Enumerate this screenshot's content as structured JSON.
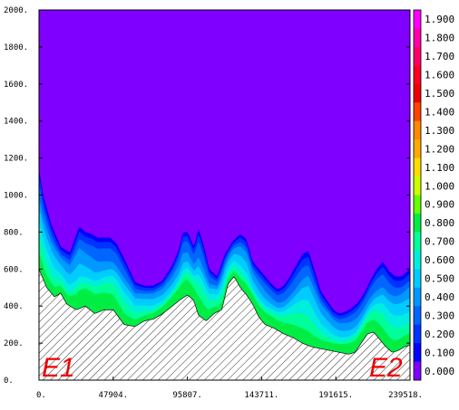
{
  "chart_data": {
    "type": "contour_section",
    "x_ticks": [
      "0.",
      "47904.",
      "95807.",
      "143711.",
      "191615.",
      "239518."
    ],
    "x_tick_values": [
      0,
      47904,
      95807,
      143711,
      191615,
      239518
    ],
    "xlim": [
      0,
      239518
    ],
    "y_ticks": [
      "0.",
      "200.",
      "400.",
      "600.",
      "800.",
      "1000.",
      "1200.",
      "1400.",
      "1600.",
      "1800.",
      "2000."
    ],
    "y_tick_values": [
      0,
      200,
      400,
      600,
      800,
      1000,
      1200,
      1400,
      1600,
      1800,
      2000
    ],
    "ylim": [
      0,
      2000
    ],
    "colorbar": {
      "labels": [
        "1.900",
        "1.800",
        "1.700",
        "1.600",
        "1.500",
        "1.400",
        "1.300",
        "1.200",
        "1.100",
        "1.000",
        "0.900",
        "0.800",
        "0.700",
        "0.600",
        "0.500",
        "0.400",
        "0.300",
        "0.200",
        "0.100",
        "0.000"
      ],
      "colors": [
        "#ff00ff",
        "#ff00aa",
        "#ff0066",
        "#ff0022",
        "#ee0000",
        "#ff4400",
        "#ff8800",
        "#ffaa00",
        "#ffdd00",
        "#ccff00",
        "#66ff00",
        "#00ee44",
        "#00ff99",
        "#00eedd",
        "#00ccff",
        "#0099ff",
        "#0066ff",
        "#0033ff",
        "#0000ff",
        "#7f00ff"
      ]
    },
    "background_color": "#8000ff",
    "terrain_hatched": true,
    "terrain_profile": {
      "x": [
        0,
        5000,
        10000,
        14000,
        18000,
        24000,
        30000,
        36000,
        42000,
        48000,
        55000,
        62000,
        68000,
        74000,
        80000,
        86000,
        92000,
        96000,
        100000,
        103000,
        108000,
        113000,
        118000,
        122000,
        126000,
        130000,
        134000,
        138000,
        142000,
        146000,
        152000,
        158000,
        164000,
        170000,
        176000,
        182000,
        188000,
        194000,
        200000,
        204000,
        208000,
        212000,
        216000,
        220000,
        224000,
        228000,
        232000,
        236000,
        239518
      ],
      "y": [
        600,
        500,
        450,
        470,
        410,
        380,
        400,
        360,
        380,
        380,
        300,
        290,
        320,
        330,
        360,
        400,
        440,
        460,
        430,
        350,
        320,
        360,
        380,
        520,
        560,
        500,
        460,
        410,
        340,
        300,
        280,
        250,
        230,
        200,
        180,
        170,
        160,
        150,
        140,
        150,
        200,
        250,
        260,
        220,
        180,
        150,
        160,
        180,
        190
      ]
    },
    "upper_boundary_0_1": {
      "x": [
        0,
        3000,
        8000,
        14000,
        20000,
        26000,
        30000,
        34000,
        38000,
        42000,
        46000,
        50000,
        56000,
        62000,
        68000,
        74000,
        80000,
        86000,
        90000,
        93000,
        96000,
        100000,
        103000,
        106000,
        110000,
        115000,
        120000,
        125000,
        130000,
        134000,
        138000,
        142000,
        146000,
        150000,
        154000,
        158000,
        162000,
        166000,
        170000,
        174000,
        178000,
        182000,
        186000,
        190000,
        194000,
        198000,
        202000,
        206000,
        210000,
        214000,
        218000,
        222000,
        226000,
        230000,
        234000,
        239518
      ],
      "y": [
        1140,
        990,
        840,
        720,
        690,
        830,
        800,
        790,
        770,
        770,
        770,
        740,
        640,
        530,
        510,
        510,
        540,
        620,
        700,
        800,
        800,
        720,
        820,
        740,
        600,
        560,
        680,
        750,
        790,
        760,
        640,
        600,
        560,
        520,
        490,
        510,
        560,
        620,
        680,
        700,
        590,
        480,
        430,
        380,
        360,
        370,
        390,
        420,
        470,
        540,
        600,
        640,
        590,
        560,
        560,
        600
      ]
    },
    "annotations": [
      "E1",
      "E2"
    ]
  }
}
